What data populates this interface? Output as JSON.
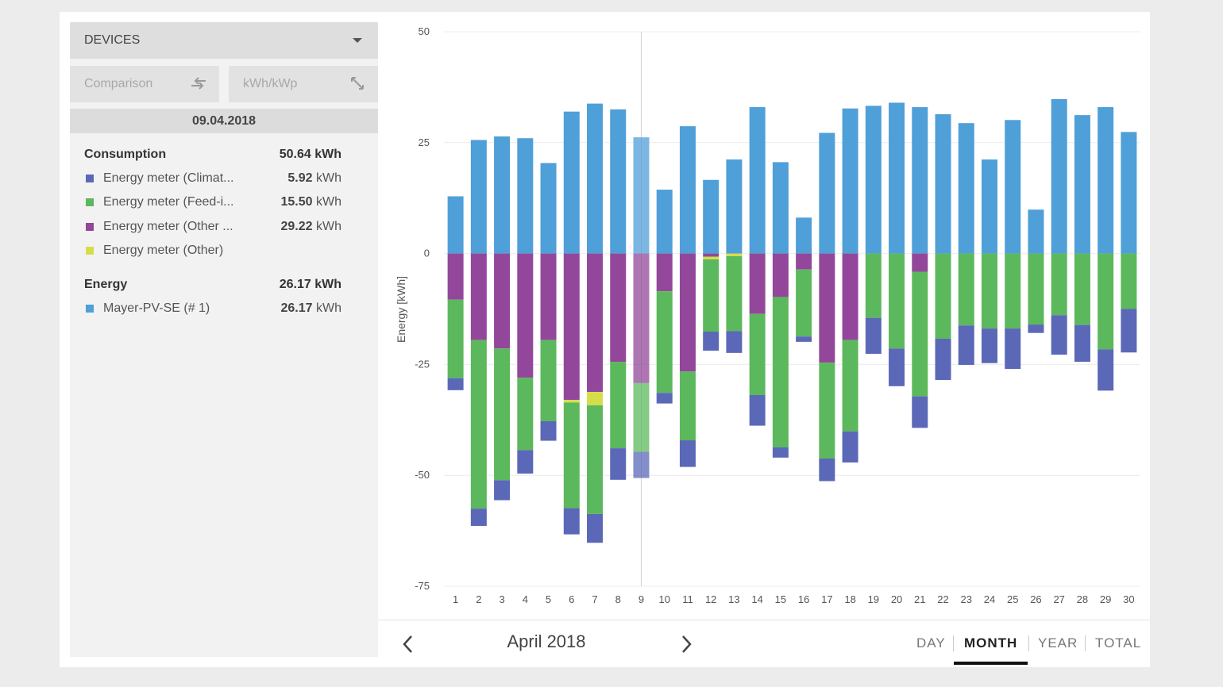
{
  "sidebar": {
    "devices_label": "DEVICES",
    "comparison_label": "Comparison",
    "unit_label": "kWh/kWp",
    "selected_date": "09.04.2018",
    "consumption": {
      "label": "Consumption",
      "total": "50.64 kWh",
      "items": [
        {
          "label": "Energy meter (Climat...",
          "value": "5.92",
          "unit": "kWh",
          "color": "#5b68b8"
        },
        {
          "label": "Energy meter (Feed-i...",
          "value": "15.50",
          "unit": "kWh",
          "color": "#5cb85c"
        },
        {
          "label": "Energy meter (Other ...",
          "value": "29.22",
          "unit": "kWh",
          "color": "#93479a"
        },
        {
          "label": "Energy meter (Other)",
          "value": "",
          "unit": "",
          "color": "#d4de4a"
        }
      ]
    },
    "energy": {
      "label": "Energy",
      "total": "26.17 kWh",
      "items": [
        {
          "label": "Mayer-PV-SE (# 1)",
          "value": "26.17",
          "unit": "kWh",
          "color": "#4f9fd8"
        }
      ]
    }
  },
  "nav": {
    "period_label": "April 2018",
    "prev_icon": "chevron-left-icon",
    "next_icon": "chevron-right-icon",
    "ranges": [
      "DAY",
      "MONTH",
      "YEAR",
      "TOTAL"
    ],
    "active_range": "MONTH"
  },
  "chart_data": {
    "type": "bar",
    "stacked": true,
    "ylabel": "Energy [kWh]",
    "ylim": [
      -75,
      50
    ],
    "yticks": [
      50,
      25,
      0,
      -25,
      -50,
      -75
    ],
    "grid": true,
    "highlighted_category": "9",
    "categories": [
      "1",
      "2",
      "3",
      "4",
      "5",
      "6",
      "7",
      "8",
      "9",
      "10",
      "11",
      "12",
      "13",
      "14",
      "15",
      "16",
      "17",
      "18",
      "19",
      "20",
      "21",
      "22",
      "23",
      "24",
      "25",
      "26",
      "27",
      "28",
      "29",
      "30"
    ],
    "series": [
      {
        "name": "Mayer-PV-SE (# 1)",
        "color": "#4f9fd8",
        "values": [
          12.9,
          25.6,
          26.4,
          26.0,
          20.4,
          32.0,
          33.8,
          32.5,
          26.2,
          14.4,
          28.7,
          16.6,
          21.2,
          33.0,
          20.6,
          8.1,
          27.2,
          32.7,
          33.3,
          34.0,
          33.0,
          31.4,
          29.4,
          21.2,
          30.1,
          9.9,
          34.8,
          31.2,
          33.0,
          27.4
        ]
      },
      {
        "name": "Energy meter (Other ...",
        "color": "#93479a",
        "values": [
          -10.4,
          -19.5,
          -21.4,
          -28.0,
          -19.5,
          -33.0,
          -31.2,
          -24.4,
          -29.2,
          -8.5,
          -26.6,
          -0.7,
          0,
          -13.6,
          -9.8,
          -3.6,
          -24.6,
          -19.5,
          0,
          0,
          -4.1,
          0,
          0,
          0,
          0,
          0,
          0,
          0,
          0,
          0
        ]
      },
      {
        "name": "Energy meter (Other)",
        "color": "#d4de4a",
        "values": [
          0,
          0,
          0,
          0,
          0,
          -0.6,
          -3.0,
          0,
          0,
          0,
          0,
          -0.6,
          -0.6,
          0,
          0,
          0,
          0,
          0,
          0,
          0,
          0,
          0,
          0,
          0,
          0,
          0,
          0,
          0,
          0,
          0
        ]
      },
      {
        "name": "Energy meter (Feed-i...",
        "color": "#5cb85c",
        "values": [
          -17.7,
          -38.0,
          -29.7,
          -16.3,
          -18.3,
          -23.8,
          -24.5,
          -19.5,
          -15.5,
          -22.9,
          -15.5,
          -16.3,
          -16.9,
          -18.3,
          -33.9,
          -15.1,
          -21.6,
          -20.6,
          -14.5,
          -21.4,
          -28.1,
          -19.2,
          -16.2,
          -16.9,
          -16.9,
          -16.0,
          -13.9,
          -16.1,
          -21.6,
          -12.5
        ]
      },
      {
        "name": "Energy meter (Climat...",
        "color": "#5b68b8",
        "values": [
          -2.7,
          -3.9,
          -4.5,
          -5.3,
          -4.4,
          -5.9,
          -6.5,
          -7.1,
          -5.9,
          -2.4,
          -6.0,
          -4.3,
          -4.9,
          -6.9,
          -2.3,
          -1.2,
          -5.1,
          -7.0,
          -8.1,
          -8.5,
          -7.1,
          -9.3,
          -8.9,
          -7.8,
          -9.1,
          -1.9,
          -8.9,
          -8.3,
          -9.3,
          -9.8
        ]
      }
    ]
  }
}
